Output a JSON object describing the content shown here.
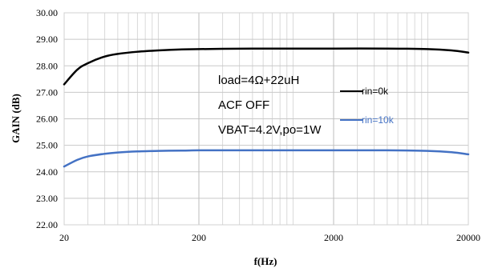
{
  "chart_data": {
    "type": "line",
    "title": "",
    "xlabel": "f(Hz)",
    "ylabel": "GAIN (dB)",
    "xscale": "log",
    "xlim": [
      20,
      20000
    ],
    "ylim": [
      22,
      30
    ],
    "xticks": [
      20,
      200,
      2000,
      20000
    ],
    "xtick_labels": [
      "20",
      "200",
      "2000",
      "20000"
    ],
    "yticks": [
      22,
      23,
      24,
      25,
      26,
      27,
      28,
      29,
      30
    ],
    "ytick_labels": [
      "22.00",
      "23.00",
      "24.00",
      "25.00",
      "26.00",
      "27.00",
      "28.00",
      "29.00",
      "30.00"
    ],
    "grid": true,
    "legend_position": "right",
    "annotations": [
      "load=4Ω+22uH",
      "ACF OFF",
      "VBAT=4.2V,po=1W"
    ],
    "series": [
      {
        "name": "rin=0k",
        "color": "#000000",
        "x": [
          20,
          25,
          30,
          40,
          50,
          70,
          100,
          150,
          200,
          300,
          500,
          1000,
          2000,
          5000,
          10000,
          15000,
          20000
        ],
        "y": [
          27.3,
          27.85,
          28.1,
          28.35,
          28.45,
          28.53,
          28.58,
          28.62,
          28.63,
          28.64,
          28.65,
          28.65,
          28.65,
          28.65,
          28.63,
          28.58,
          28.5
        ]
      },
      {
        "name": "rin=10k",
        "color": "#4472C4",
        "x": [
          20,
          25,
          30,
          40,
          50,
          70,
          100,
          150,
          200,
          300,
          500,
          1000,
          2000,
          5000,
          10000,
          15000,
          20000
        ],
        "y": [
          24.2,
          24.45,
          24.58,
          24.68,
          24.73,
          24.77,
          24.79,
          24.8,
          24.81,
          24.81,
          24.81,
          24.81,
          24.81,
          24.81,
          24.79,
          24.74,
          24.66
        ]
      }
    ]
  }
}
